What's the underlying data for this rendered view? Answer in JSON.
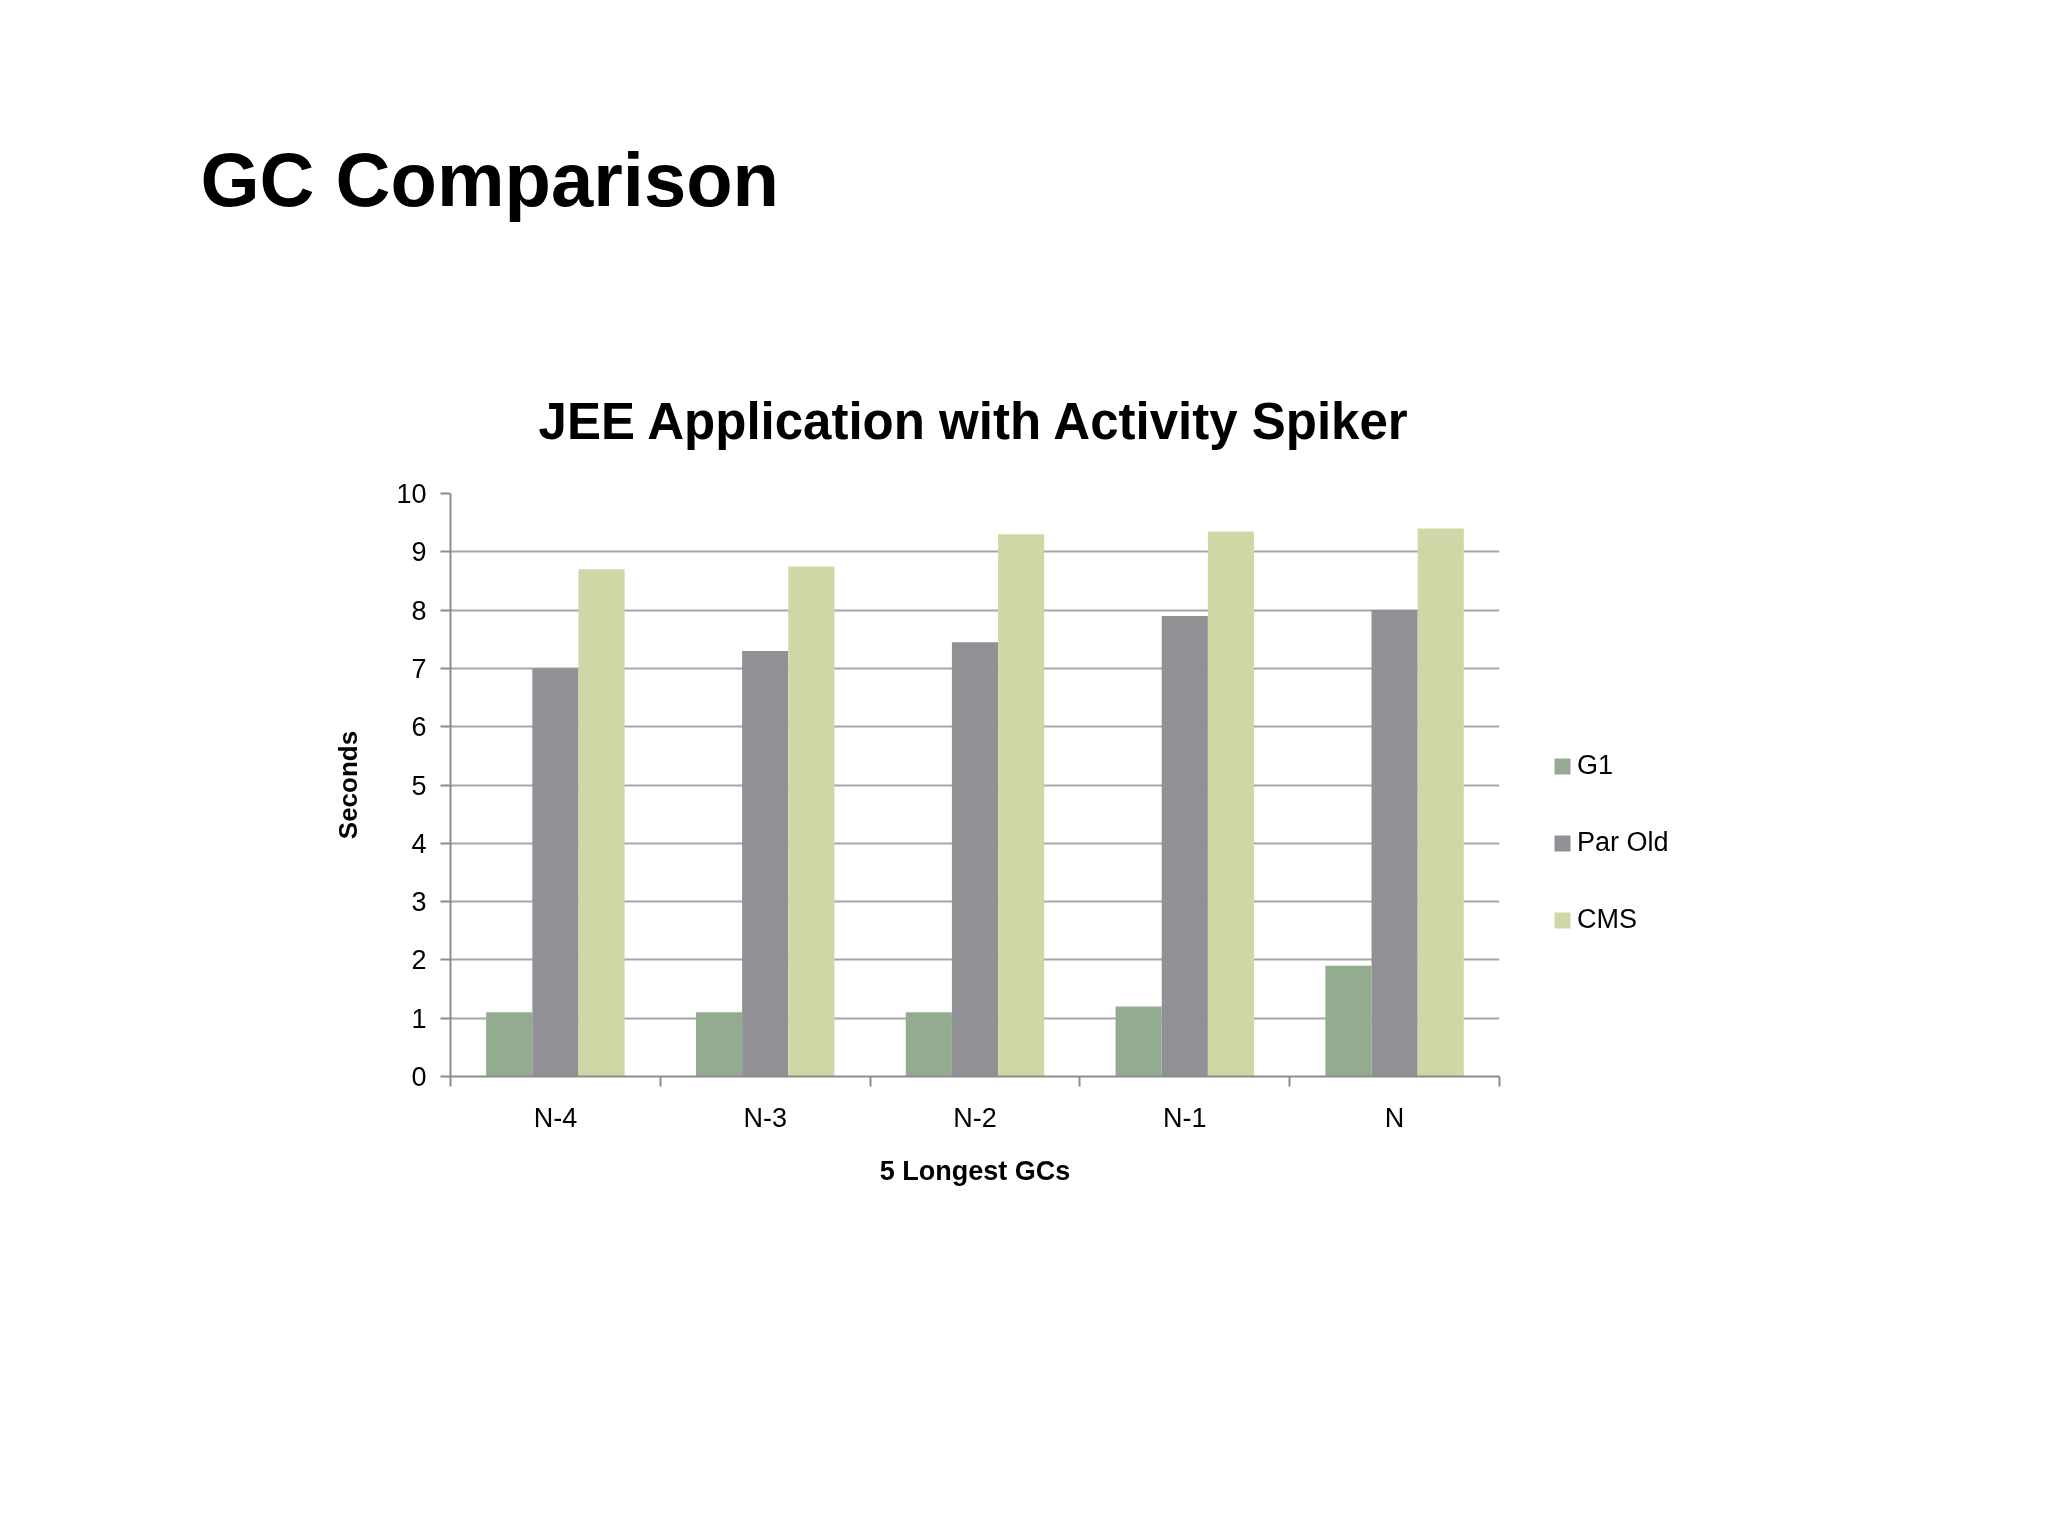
{
  "chart_data": {
    "type": "bar",
    "title": "GC Comparison",
    "subtitle": "JEE Application with Activity Spiker",
    "xlabel": "5 Longest GCs",
    "ylabel": "Seconds",
    "categories": [
      "N-4",
      "N-3",
      "N-2",
      "N-1",
      "N"
    ],
    "series": [
      {
        "name": "G1",
        "color": "#93ac8f",
        "values": [
          1.1,
          1.1,
          1.1,
          1.2,
          1.9
        ]
      },
      {
        "name": "Par Old",
        "color": "#919094",
        "values": [
          7.0,
          7.3,
          7.45,
          7.9,
          8.0
        ]
      },
      {
        "name": "CMS",
        "color": "#d0d7a6",
        "values": [
          8.7,
          8.75,
          9.3,
          9.35,
          9.4
        ]
      }
    ],
    "ylim": [
      0,
      10
    ],
    "yticks": [
      0,
      1,
      2,
      3,
      4,
      5,
      6,
      7,
      8,
      9,
      10
    ],
    "grid": "y",
    "legend": "right"
  }
}
